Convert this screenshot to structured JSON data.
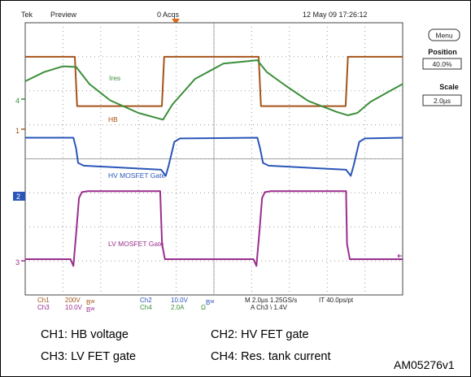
{
  "scope": {
    "brand": "Tek",
    "mode": "Preview",
    "acq": "0 Acqs",
    "datetime": "12 May 09 17:26:12",
    "menu_label": "Menu",
    "position_label": "Position",
    "position_value": "40.0%",
    "scale_label": "Scale",
    "scale_value": "2.0µs",
    "readout": {
      "row1": {
        "ch1": "Ch1",
        "ch1_val": "200V",
        "bw1": "Bᵂ",
        "ch2": "Ch2",
        "ch2_val": "10.0V",
        "bw_mid": "Bᵂ",
        "timebase": "M 2.0µs 1.25GS/s",
        "pts": "IT 40.0ps/pt"
      },
      "row2": {
        "ch3": "Ch3",
        "ch3_val": "10.0V",
        "bw3": "Bᵂ",
        "ch4": "Ch4",
        "ch4_val": "2.0A",
        "ohm": "Ω",
        "trigger": "A  Ch3  \\  1.4V"
      }
    },
    "channel_markers": {
      "m4": "4",
      "m1": "1",
      "m2": "2",
      "m3": "3"
    }
  },
  "colors": {
    "ch1": "#a5541a",
    "ch2": "#2a56b8",
    "ch3": "#9b2d8e",
    "ch4": "#3b8f3a",
    "trigger": "#e06a1b"
  },
  "chart_data": {
    "type": "line",
    "title": "",
    "xlabel": "",
    "ylabel": "",
    "x_unit": "µs",
    "xlim": [
      0,
      20
    ],
    "ylim": [
      -4,
      4
    ],
    "grid": true,
    "series": [
      {
        "name": "HB",
        "color": "#a5541a",
        "x": [
          0,
          2.63,
          2.75,
          7.24,
          7.36,
          12.37,
          12.49,
          16.98,
          17.1,
          20
        ],
        "y": [
          3.0,
          3.0,
          1.55,
          1.55,
          3.0,
          3.0,
          1.55,
          1.55,
          3.0,
          3.0
        ]
      },
      {
        "name": "Ires",
        "color": "#3b8f3a",
        "x": [
          0,
          1,
          2,
          2.7,
          3.4,
          4.5,
          6.0,
          7.3,
          7.8,
          9.0,
          10.5,
          12.3,
          12.8,
          13.8,
          15.0,
          16.5,
          17.1,
          17.6,
          18.3,
          19.5,
          20
        ],
        "y": [
          2.28,
          2.55,
          2.72,
          2.7,
          2.2,
          1.72,
          1.35,
          1.15,
          1.6,
          2.35,
          2.8,
          2.9,
          2.55,
          2.15,
          1.7,
          1.38,
          1.28,
          1.35,
          1.68,
          2.05,
          2.2
        ]
      },
      {
        "name": "HV MOSFET Gate",
        "color": "#2a56b8",
        "x": [
          0,
          2.55,
          2.7,
          2.8,
          3.1,
          7.2,
          7.45,
          7.6,
          7.9,
          8.2,
          12.3,
          12.45,
          12.6,
          12.9,
          17.0,
          17.25,
          17.4,
          17.7,
          18.0,
          20
        ],
        "y": [
          0.62,
          0.62,
          0.3,
          -0.12,
          -0.2,
          -0.32,
          -0.5,
          -0.2,
          0.5,
          0.6,
          0.62,
          0.3,
          -0.12,
          -0.2,
          -0.32,
          -0.5,
          -0.2,
          0.5,
          0.6,
          0.62
        ]
      },
      {
        "name": "LV MOSFET Gate",
        "color": "#9b2d8e",
        "x": [
          0,
          2.4,
          2.55,
          2.7,
          2.85,
          3.0,
          3.3,
          7.15,
          7.25,
          7.4,
          12.1,
          12.25,
          12.4,
          12.55,
          12.7,
          13.0,
          17.0,
          17.05,
          17.2,
          20
        ],
        "y": [
          -2.95,
          -2.95,
          -3.15,
          -2.2,
          -1.15,
          -0.98,
          -0.95,
          -0.95,
          -2.5,
          -2.95,
          -2.95,
          -3.15,
          -2.2,
          -1.15,
          -0.98,
          -0.95,
          -0.95,
          -2.5,
          -2.95,
          -2.95
        ]
      }
    ],
    "annotations": [
      "Ires",
      "HB",
      "HV MOSFET Gate",
      "LV MOSFET Gate"
    ]
  },
  "caption": {
    "ch1": "CH1:  HB voltage",
    "ch2": "CH2:  HV FET gate",
    "ch3": "CH3:  LV FET gate",
    "ch4": "CH4:  Res. tank current",
    "ref": "AM05276v1"
  }
}
